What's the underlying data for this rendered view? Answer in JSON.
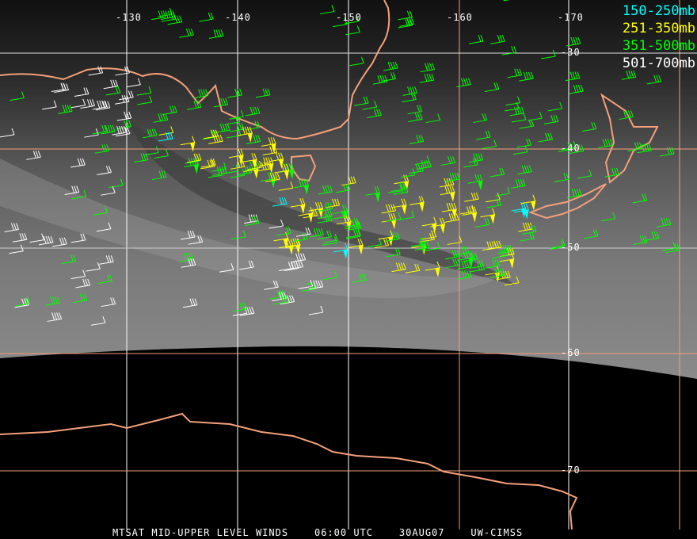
{
  "map": {
    "longitude_labels": [
      "-130",
      "-140",
      "-150",
      "-160",
      "-170"
    ],
    "latitude_labels": [
      "-30",
      "-40",
      "-50",
      "-60",
      "-70"
    ]
  },
  "legend": [
    {
      "label": "150-250mb",
      "color": "#00ffff"
    },
    {
      "label": "251-350mb",
      "color": "#ffff00"
    },
    {
      "label": "351-500mb",
      "color": "#00ff00"
    },
    {
      "label": "501-700mb",
      "color": "#ffffff"
    }
  ],
  "footer": {
    "product": "MTSAT MID-UPPER LEVEL WINDS",
    "time": "06:00 UTC",
    "date": "30AUG07",
    "source": "UW-CIMSS"
  },
  "colors": {
    "coastline": "#f4a07a",
    "grid_white": "#ffffff",
    "grid_orange": "#f4a07a"
  }
}
